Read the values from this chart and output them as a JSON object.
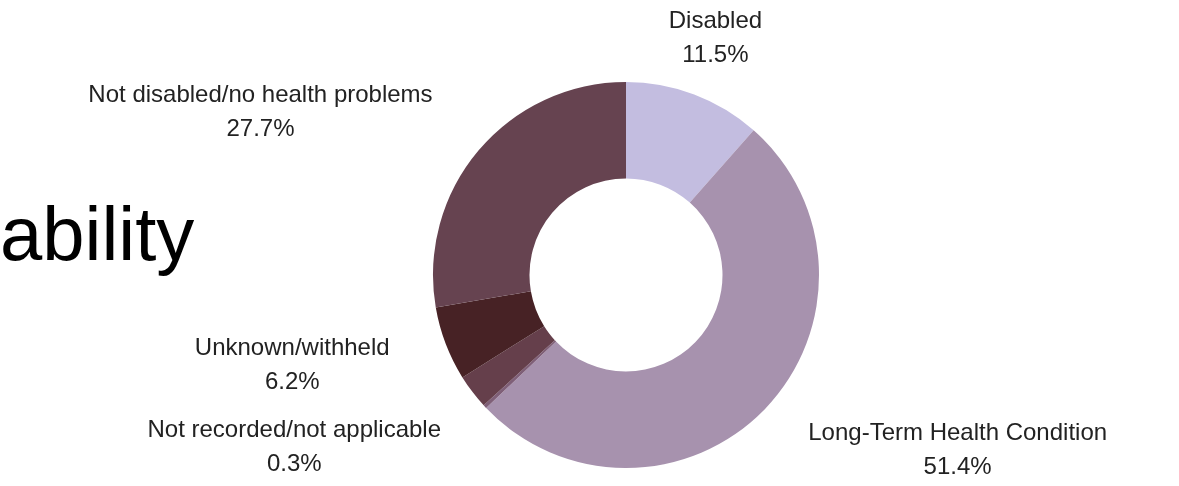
{
  "chart_data": {
    "type": "donut",
    "title": "ability",
    "categories": [
      "Disabled",
      "Long-Term Health Condition",
      "Not recorded/not applicable",
      null,
      "Unknown/withheld",
      "Not disabled/no health problems"
    ],
    "values": [
      11.5,
      51.4,
      0.3,
      2.9,
      6.2,
      27.7
    ],
    "colors": [
      "#c3bde0",
      "#a792ae",
      "#7f5f78",
      "#653f4b",
      "#472225",
      "#664350"
    ],
    "value_labels": [
      "11.5%",
      "51.4%",
      "0.3%",
      null,
      "6.2%",
      "27.7%"
    ],
    "legend": false
  }
}
